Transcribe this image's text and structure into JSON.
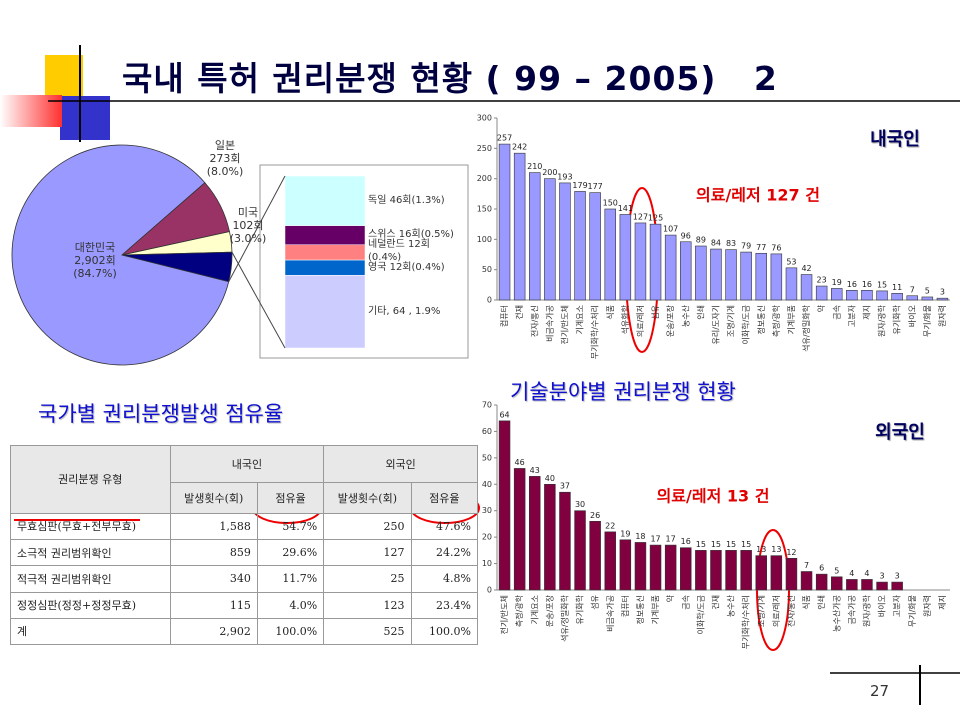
{
  "title": "국내 특허 권리분쟁 현황 ( 99 – 2005)   2",
  "page_number": "27",
  "chart_data": [
    {
      "type": "pie",
      "title": "국가별 권리분쟁발생 점유율",
      "categories": [
        "대한민국",
        "일본",
        "미국",
        null
      ],
      "values": [
        84.7,
        8.0,
        3.0,
        4.3
      ],
      "value_labels": [
        "2,902회\n(84.7%)",
        "273회\n(8.0%)",
        "102회\n(3.0%)",
        null
      ],
      "colors": [
        "#9999ff",
        "#993366",
        "#ffffcc",
        "#000080"
      ]
    },
    {
      "type": "stacked-bar",
      "series": [
        {
          "name": "독일 46회(1.3%)",
          "color": "#ccffff",
          "values": [
            1.3
          ]
        },
        {
          "name": "스위스  16회(0.5%)",
          "color": "#660066",
          "values": [
            0.5
          ]
        },
        {
          "name": "네덜란드 12회\n(0.4%)",
          "color": "#ff8080",
          "values": [
            0.4
          ]
        },
        {
          "name": "영국 12회(0.4%)",
          "color": "#0066cc",
          "values": [
            0.4
          ]
        },
        {
          "name": "기타, 64 , 1.9%",
          "color": "#ccccff",
          "values": [
            1.9
          ]
        }
      ]
    },
    {
      "type": "bar",
      "title": "내국인",
      "annotation": "의료/레저 127 건",
      "color": "#9999ff",
      "categories": [
        "컴퓨터",
        "건재",
        "전자/통신",
        "비금속가공",
        "전기/반도체",
        "기계요소",
        "무기화학/수처리",
        "식품",
        "석유화학",
        "의료/레저",
        "섬유",
        "운송/포장",
        "농수산",
        "인쇄",
        "유리/도자기",
        "조명/기계",
        "이화학/도금",
        "정보통신",
        "측정/광학",
        "기계부품",
        "석유/정밀화학",
        "약",
        "금속",
        "고분자",
        "제지",
        "원자/광학",
        "유기화학",
        "바이오",
        "무기/화물",
        "원자력"
      ],
      "values": [
        257,
        242,
        210,
        200,
        193,
        179,
        177,
        150,
        141,
        127,
        125,
        107,
        96,
        89,
        84,
        83,
        79,
        77,
        76,
        53,
        42,
        23,
        19,
        16,
        16,
        15,
        11,
        7,
        5,
        3
      ],
      "ylim": [
        0,
        300
      ],
      "yticks": [
        0,
        50,
        100,
        150,
        200,
        250,
        300
      ]
    },
    {
      "type": "bar",
      "title": "외국인",
      "annotation": "의료/레저 13 건",
      "color": "#800040",
      "categories": [
        "전기/반도체",
        "측정/광학",
        "기계요소",
        "운송/포장",
        "석유/정밀화학",
        "유기화학",
        "섬유",
        "비금속가공",
        "컴퓨터",
        "정보통신",
        "기계부품",
        "약",
        "금속",
        "이화학/도금",
        "건재",
        "농수산",
        "무기화학/수처리",
        "조명/기계",
        "의료/레저",
        "전자/통신",
        "식품",
        "인쇄",
        "농수산가공",
        "금속가공",
        "원자/광학",
        "바이오",
        "고분자",
        "무기/화물",
        "원자력",
        "제지"
      ],
      "values": [
        64,
        46,
        43,
        40,
        37,
        30,
        26,
        22,
        19,
        18,
        17,
        17,
        16,
        15,
        15,
        15,
        15,
        13,
        13,
        12,
        7,
        6,
        5,
        4,
        4,
        3,
        3,
        null,
        null,
        null
      ],
      "ylim": [
        0,
        70
      ],
      "yticks": [
        0,
        10,
        20,
        30,
        40,
        50,
        60,
        70
      ]
    }
  ],
  "table": {
    "header": [
      "권리분쟁 유형",
      "내국인",
      "외국인"
    ],
    "subheader": [
      "발생횟수(회)",
      "점유율",
      "발생횟수(회)",
      "점유율"
    ],
    "rows": [
      [
        "무효심판(무효+전부무효)",
        "1,588",
        "54.7%",
        "250",
        "47.6%"
      ],
      [
        "소극적 권리범위확인",
        "859",
        "29.6%",
        "127",
        "24.2%"
      ],
      [
        "적극적 권리범위확인",
        "340",
        "11.7%",
        "25",
        "4.8%"
      ],
      [
        "정정심판(정정+정정무효)",
        "115",
        "4.0%",
        "123",
        "23.4%"
      ],
      [
        "계",
        "2,902",
        "100.0%",
        "525",
        "100.0%"
      ]
    ]
  }
}
